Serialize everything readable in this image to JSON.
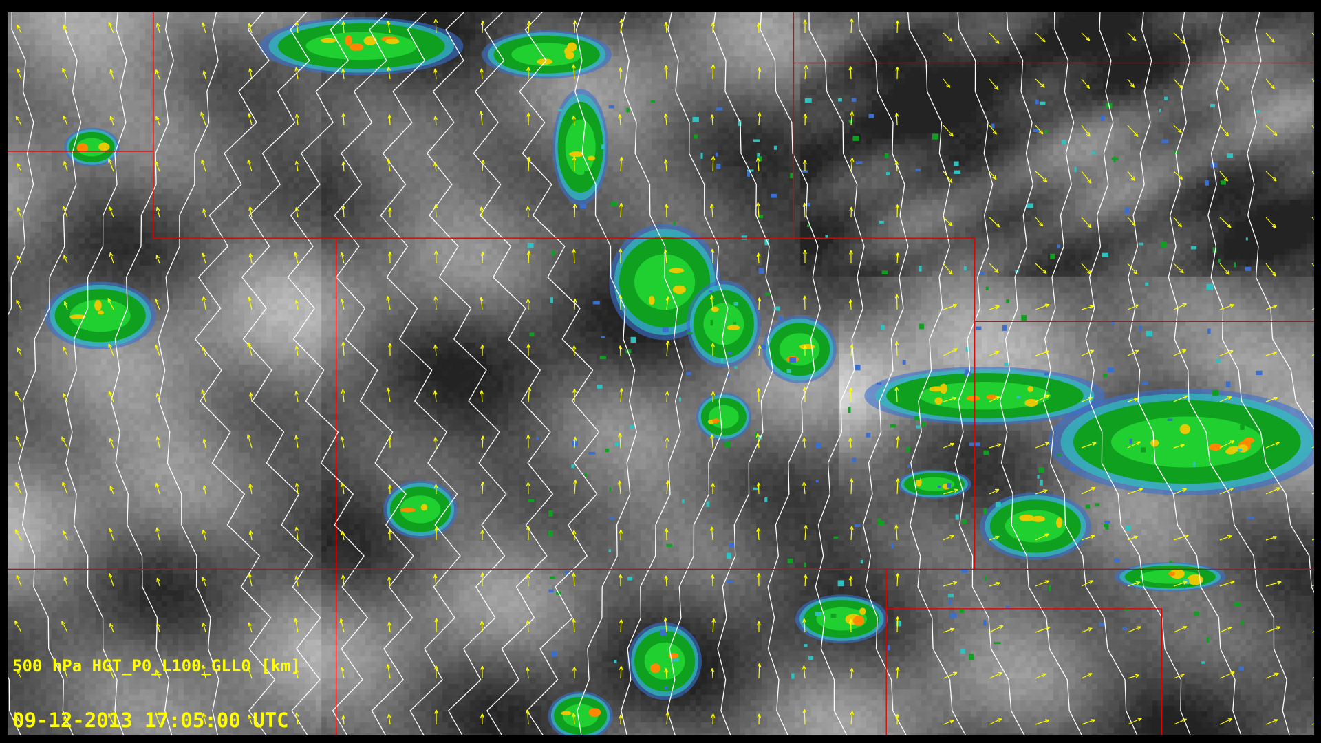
{
  "display": {
    "field_label": "500 hPa HGT_P0_L100_GLL0 [km]",
    "timestamp": "09-12-2013 17:05:00 UTC"
  },
  "layers": [
    {
      "name": "satellite-ir-imagery",
      "colormap": "grayscale"
    },
    {
      "name": "radar-reflectivity",
      "colors": [
        "#3a6fd0",
        "#2fc0c0",
        "#10a020",
        "#1fd030",
        "#e8c800",
        "#ff8800"
      ]
    },
    {
      "name": "height-contours",
      "color": "#ffffff"
    },
    {
      "name": "wind-vectors",
      "color": "#ffff00"
    },
    {
      "name": "state-boundaries",
      "color": "#ff0000"
    }
  ]
}
